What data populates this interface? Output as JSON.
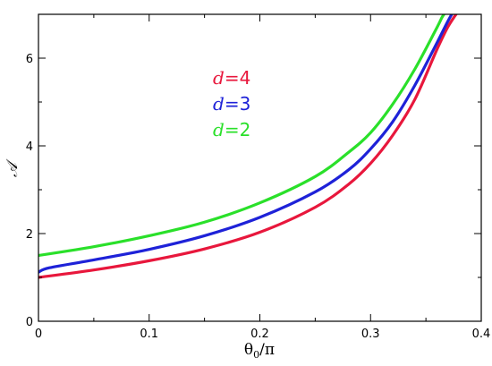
{
  "chart_data": {
    "type": "line",
    "title": "",
    "xlabel": "θ",
    "xlabel_sub": "0",
    "xlabel_suffix": "/π",
    "ylabel": "𝒜",
    "xlim": [
      0,
      0.4
    ],
    "ylim": [
      0,
      7
    ],
    "xticks": [
      0,
      0.1,
      0.2,
      0.3,
      0.4
    ],
    "xtick_labels": [
      "0",
      "0.1",
      "0.2",
      "0.3",
      "0.4"
    ],
    "yticks": [
      0,
      2,
      4,
      6
    ],
    "ytick_labels": [
      "0",
      "2",
      "4",
      "6"
    ],
    "grid": false,
    "legend_position": "top-center",
    "series": [
      {
        "name": "d=4",
        "name_var": "d",
        "name_val": "=4",
        "color": "#e8173c",
        "x": [
          0,
          0.05,
          0.1,
          0.15,
          0.2,
          0.25,
          0.28,
          0.3,
          0.32,
          0.34,
          0.36,
          0.37,
          0.38,
          0.383
        ],
        "y": [
          1.0,
          1.17,
          1.38,
          1.65,
          2.03,
          2.6,
          3.12,
          3.6,
          4.24,
          5.06,
          6.2,
          6.72,
          7.1,
          7.2
        ]
      },
      {
        "name": "d=3",
        "name_var": "d",
        "name_val": "=3",
        "color": "#1e22d8",
        "x": [
          0,
          0.01,
          0.05,
          0.1,
          0.15,
          0.2,
          0.25,
          0.28,
          0.3,
          0.32,
          0.34,
          0.36,
          0.37,
          0.378
        ],
        "y": [
          1.12,
          1.22,
          1.4,
          1.64,
          1.95,
          2.37,
          2.95,
          3.45,
          3.93,
          4.55,
          5.38,
          6.35,
          6.85,
          7.2
        ]
      },
      {
        "name": "d=2",
        "name_var": "d",
        "name_val": "=2",
        "color": "#2ae02a",
        "x": [
          0,
          0.05,
          0.1,
          0.15,
          0.2,
          0.25,
          0.28,
          0.3,
          0.32,
          0.34,
          0.36,
          0.365,
          0.372
        ],
        "y": [
          1.5,
          1.7,
          1.95,
          2.26,
          2.7,
          3.3,
          3.85,
          4.3,
          4.95,
          5.75,
          6.7,
          6.95,
          7.2
        ]
      }
    ]
  }
}
